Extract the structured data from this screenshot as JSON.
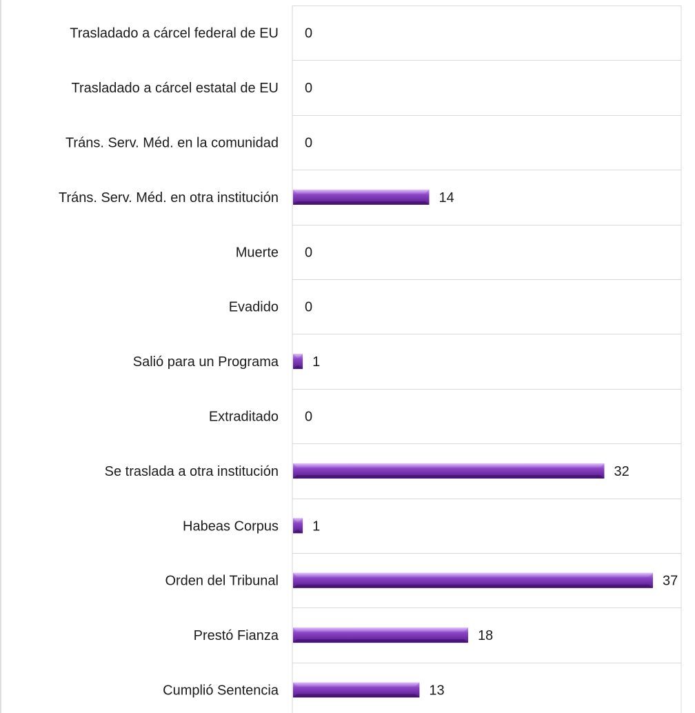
{
  "chart_data": {
    "type": "bar",
    "orientation": "horizontal",
    "categories": [
      "Trasladado a cárcel federal de EU",
      "Trasladado a cárcel estatal de EU",
      "Tráns. Serv. Méd. en la comunidad",
      "Tráns. Serv. Méd. en otra institución",
      "Muerte",
      "Evadido",
      "Salió para un Programa",
      "Extraditado",
      "Se traslada a otra institución",
      "Habeas Corpus",
      "Orden del Tribunal",
      "Prestó Fianza",
      "Cumplió Sentencia"
    ],
    "values": [
      0,
      0,
      0,
      14,
      0,
      0,
      1,
      0,
      32,
      1,
      37,
      18,
      13
    ],
    "title": "",
    "xlabel": "",
    "ylabel": "",
    "xlim": [
      0,
      40
    ],
    "grid": true,
    "legend": "none",
    "bar_color": "#7030a0",
    "bar_color_light": "#b47ce0"
  }
}
